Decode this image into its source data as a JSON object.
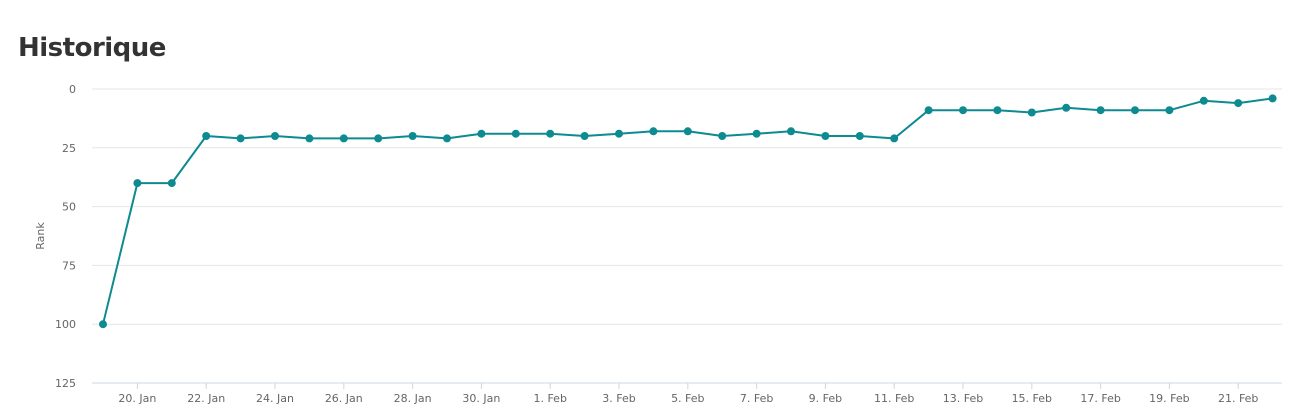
{
  "header": {
    "title": "Historique"
  },
  "chart_data": {
    "type": "line",
    "title": "Historique",
    "ylabel": "Rank",
    "xlabel": "",
    "y_reversed": true,
    "ylim": [
      0,
      125
    ],
    "y_ticks": [
      0,
      25,
      50,
      75,
      100,
      125
    ],
    "grid": true,
    "colors": {
      "series": "#0e8a91",
      "grid": "#e6e6e6",
      "axis": "#ccd6eb"
    },
    "x_ticks": [
      "20. Jan",
      "22. Jan",
      "24. Jan",
      "26. Jan",
      "28. Jan",
      "30. Jan",
      "1. Feb",
      "3. Feb",
      "5. Feb",
      "7. Feb",
      "9. Feb",
      "11. Feb",
      "13. Feb",
      "15. Feb",
      "17. Feb",
      "19. Feb",
      "21. Feb"
    ],
    "series": [
      {
        "x": [
          "2019-01-19",
          "2019-01-20",
          "2019-01-21",
          "2019-01-22",
          "2019-01-23",
          "2019-01-24",
          "2019-01-25",
          "2019-01-26",
          "2019-01-27",
          "2019-01-28",
          "2019-01-29",
          "2019-01-30",
          "2019-01-31",
          "2019-02-01",
          "2019-02-02",
          "2019-02-03",
          "2019-02-04",
          "2019-02-05",
          "2019-02-06",
          "2019-02-07",
          "2019-02-08",
          "2019-02-09",
          "2019-02-10",
          "2019-02-11",
          "2019-02-12",
          "2019-02-13",
          "2019-02-14",
          "2019-02-15",
          "2019-02-16",
          "2019-02-17",
          "2019-02-18",
          "2019-02-19",
          "2019-02-20",
          "2019-02-21",
          "2019-02-22"
        ],
        "values": [
          100,
          40,
          40,
          20,
          21,
          20,
          21,
          21,
          21,
          20,
          21,
          19,
          19,
          19,
          20,
          19,
          18,
          18,
          20,
          19,
          18,
          20,
          20,
          21,
          9,
          9,
          9,
          10,
          8,
          9,
          9,
          9,
          5,
          6,
          4
        ]
      }
    ]
  }
}
